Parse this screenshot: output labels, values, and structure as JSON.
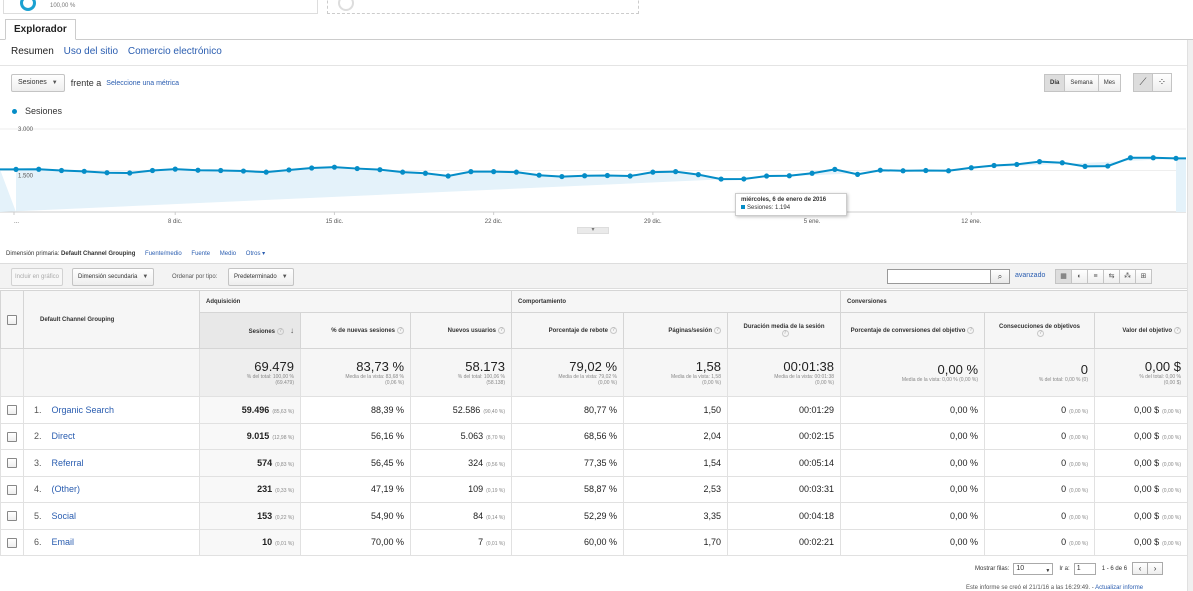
{
  "top_card": {
    "percent": "100,00 %"
  },
  "tab": {
    "explorer": "Explorador"
  },
  "subnav": {
    "summary": "Resumen",
    "site_usage": "Uso del sitio",
    "ecommerce": "Comercio electrónico"
  },
  "metric_selector": {
    "metric": "Sesiones",
    "versus": "frente a",
    "select_metric": "Seleccione una métrica"
  },
  "period": {
    "day": "Día",
    "week": "Semana",
    "month": "Mes"
  },
  "legend": {
    "series": "Sesiones"
  },
  "chart_data": {
    "type": "area",
    "series": [
      {
        "name": "Sesiones",
        "values": [
          1540,
          1545,
          1500,
          1470,
          1420,
          1410,
          1500,
          1550,
          1510,
          1500,
          1480,
          1440,
          1520,
          1590,
          1620,
          1570,
          1530,
          1440,
          1400,
          1300,
          1460,
          1460,
          1440,
          1330,
          1280,
          1310,
          1320,
          1300,
          1440,
          1460,
          1350,
          1190,
          1194,
          1300,
          1310,
          1400,
          1540,
          1360,
          1510,
          1490,
          1500,
          1490,
          1600,
          1680,
          1720,
          1820,
          1780,
          1650,
          1660,
          1960,
          1960,
          1940
        ]
      }
    ],
    "y_ticks": [
      "1.500",
      "3.000"
    ],
    "x_ticks": [
      "...",
      "8 dic.",
      "15 dic.",
      "22 dic.",
      "29 dic.",
      "5 ene.",
      "12 ene."
    ],
    "ylim": [
      0,
      3000
    ],
    "grid": true
  },
  "tooltip": {
    "date": "miércoles, 6 de enero de 2016",
    "value": "Sesiones: 1.194"
  },
  "dimensions": {
    "label": "Dimensión primaria:",
    "selected": "Default Channel Grouping",
    "options": [
      "Fuente/medio",
      "Fuente",
      "Medio",
      "Otros"
    ]
  },
  "toolbar": {
    "plot_rows": "Incluir en gráfico",
    "secondary_dimension": "Dimensión secundaria",
    "sort_type_label": "Ordenar por tipo:",
    "sort_type": "Predeterminado",
    "advanced": "avanzado"
  },
  "table": {
    "dimension_header": "Default Channel Grouping",
    "groups": {
      "acquisition": "Adquisición",
      "behavior": "Comportamiento",
      "conversions": "Conversiones"
    },
    "columns": [
      "Sesiones",
      "% de nuevas sesiones",
      "Nuevos usuarios",
      "Porcentaje de rebote",
      "Páginas/sesión",
      "Duración media de la sesión",
      "Porcentaje de conversiones del objetivo",
      "Consecuciones de objetivos",
      "Valor del objetivo"
    ],
    "totals": [
      {
        "value": "69.479",
        "sub1": "% del total: 100,00 %",
        "sub2": "(69.479)"
      },
      {
        "value": "83,73 %",
        "sub1": "Media de la vista: 83,68 %",
        "sub2": "(0,06 %)"
      },
      {
        "value": "58.173",
        "sub1": "% del total: 100,06 %",
        "sub2": "(58.138)"
      },
      {
        "value": "79,02 %",
        "sub1": "Media de la vista: 79,02 %",
        "sub2": "(0,00 %)"
      },
      {
        "value": "1,58",
        "sub1": "Media de la vista: 1,58",
        "sub2": "(0,00 %)"
      },
      {
        "value": "00:01:38",
        "sub1": "Media de la vista: 00:01:38",
        "sub2": "(0,00 %)"
      },
      {
        "value": "0,00 %",
        "sub1": "Media de la vista: 0,00 % (0,00 %)",
        "sub2": ""
      },
      {
        "value": "0",
        "sub1": "% del total: 0,00 % (0)",
        "sub2": ""
      },
      {
        "value": "0,00 $",
        "sub1": "% del total: 0,00 %",
        "sub2": "(0,00 $)"
      }
    ],
    "rows": [
      {
        "num": "1.",
        "name": "Organic Search",
        "sessions": "59.496",
        "sessions_pct": "(85,63 %)",
        "new_pct": "88,39 %",
        "new_users": "52.586",
        "new_users_pct": "(90,40 %)",
        "bounce": "80,77 %",
        "pages": "1,50",
        "duration": "00:01:29",
        "conv": "0,00 %",
        "goals": "0",
        "goals_pct": "(0,00 %)",
        "value": "0,00 $",
        "value_pct": "(0,00 %)"
      },
      {
        "num": "2.",
        "name": "Direct",
        "sessions": "9.015",
        "sessions_pct": "(12,98 %)",
        "new_pct": "56,16 %",
        "new_users": "5.063",
        "new_users_pct": "(8,70 %)",
        "bounce": "68,56 %",
        "pages": "2,04",
        "duration": "00:02:15",
        "conv": "0,00 %",
        "goals": "0",
        "goals_pct": "(0,00 %)",
        "value": "0,00 $",
        "value_pct": "(0,00 %)"
      },
      {
        "num": "3.",
        "name": "Referral",
        "sessions": "574",
        "sessions_pct": "(0,83 %)",
        "new_pct": "56,45 %",
        "new_users": "324",
        "new_users_pct": "(0,56 %)",
        "bounce": "77,35 %",
        "pages": "1,54",
        "duration": "00:05:14",
        "conv": "0,00 %",
        "goals": "0",
        "goals_pct": "(0,00 %)",
        "value": "0,00 $",
        "value_pct": "(0,00 %)"
      },
      {
        "num": "4.",
        "name": "(Other)",
        "sessions": "231",
        "sessions_pct": "(0,33 %)",
        "new_pct": "47,19 %",
        "new_users": "109",
        "new_users_pct": "(0,19 %)",
        "bounce": "58,87 %",
        "pages": "2,53",
        "duration": "00:03:31",
        "conv": "0,00 %",
        "goals": "0",
        "goals_pct": "(0,00 %)",
        "value": "0,00 $",
        "value_pct": "(0,00 %)"
      },
      {
        "num": "5.",
        "name": "Social",
        "sessions": "153",
        "sessions_pct": "(0,22 %)",
        "new_pct": "54,90 %",
        "new_users": "84",
        "new_users_pct": "(0,14 %)",
        "bounce": "52,29 %",
        "pages": "3,35",
        "duration": "00:04:18",
        "conv": "0,00 %",
        "goals": "0",
        "goals_pct": "(0,00 %)",
        "value": "0,00 $",
        "value_pct": "(0,00 %)"
      },
      {
        "num": "6.",
        "name": "Email",
        "sessions": "10",
        "sessions_pct": "(0,01 %)",
        "new_pct": "70,00 %",
        "new_users": "7",
        "new_users_pct": "(0,01 %)",
        "bounce": "60,00 %",
        "pages": "1,70",
        "duration": "00:02:21",
        "conv": "0,00 %",
        "goals": "0",
        "goals_pct": "(0,00 %)",
        "value": "0,00 $",
        "value_pct": "(0,00 %)"
      }
    ]
  },
  "pager": {
    "rows_label": "Mostrar filas:",
    "rows_value": "10",
    "goto_label": "Ir a:",
    "goto_value": "1",
    "range": "1 - 6 de 6"
  },
  "footer": {
    "text": "Este informe se creó el 21/1/16 a las 16:29:49. - ",
    "link": "Actualizar informe"
  },
  "colors": {
    "series": "#058dc7",
    "fill": "#e4f2fa",
    "link": "#2a5db0"
  }
}
